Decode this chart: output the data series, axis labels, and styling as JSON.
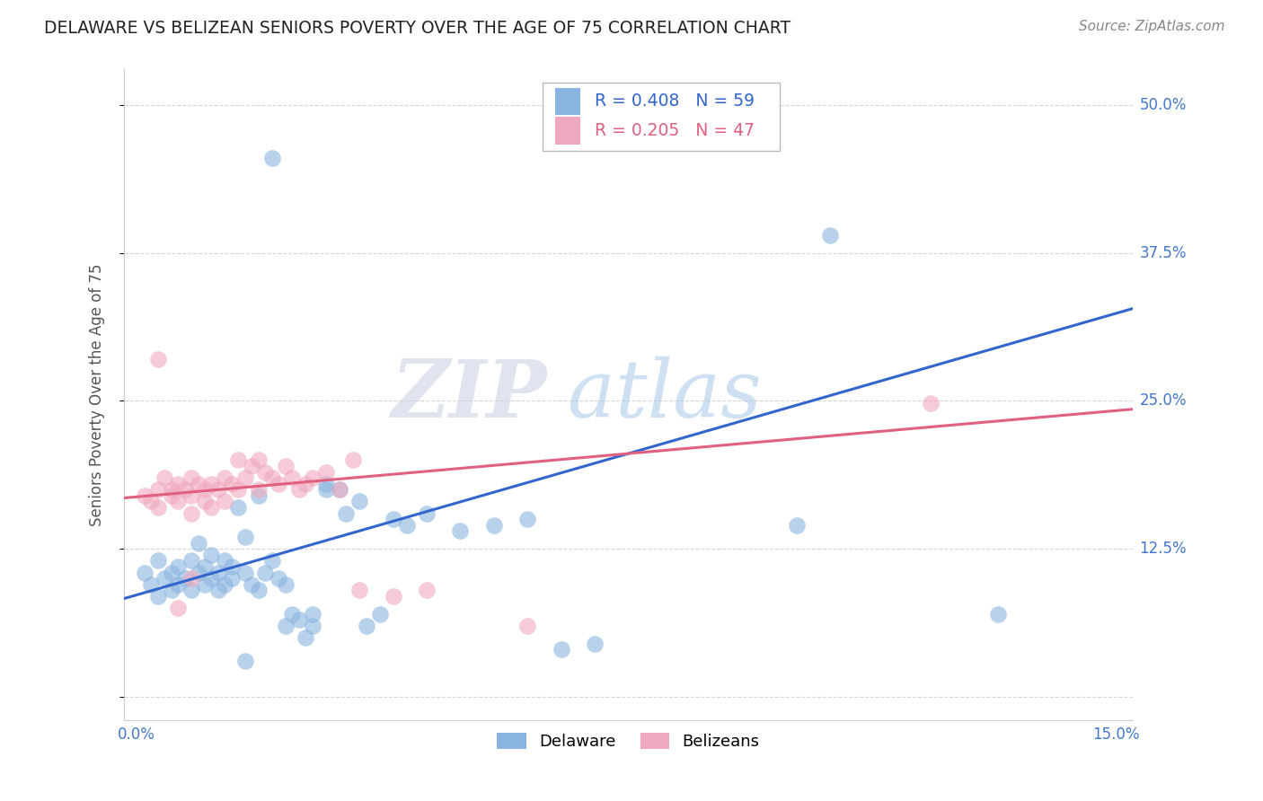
{
  "title": "DELAWARE VS BELIZEAN SENIORS POVERTY OVER THE AGE OF 75 CORRELATION CHART",
  "source": "Source: ZipAtlas.com",
  "ylabel": "Seniors Poverty Over the Age of 75",
  "x_min": 0.0,
  "x_max": 0.15,
  "y_min": -0.02,
  "y_max": 0.53,
  "yticks": [
    0.0,
    0.125,
    0.25,
    0.375,
    0.5
  ],
  "ytick_labels": [
    "",
    "12.5%",
    "25.0%",
    "37.5%",
    "50.0%"
  ],
  "background_color": "#ffffff",
  "grid_color": "#cccccc",
  "blue_color": "#8ab4e0",
  "pink_color": "#f0a8be",
  "blue_line_color": "#3366cc",
  "pink_line_color": "#e06080",
  "tick_label_color": "#4477cc",
  "blue_scatter": [
    [
      0.003,
      0.105
    ],
    [
      0.004,
      0.095
    ],
    [
      0.005,
      0.115
    ],
    [
      0.005,
      0.085
    ],
    [
      0.006,
      0.1
    ],
    [
      0.007,
      0.09
    ],
    [
      0.007,
      0.105
    ],
    [
      0.008,
      0.095
    ],
    [
      0.008,
      0.11
    ],
    [
      0.009,
      0.1
    ],
    [
      0.01,
      0.09
    ],
    [
      0.01,
      0.115
    ],
    [
      0.011,
      0.105
    ],
    [
      0.011,
      0.13
    ],
    [
      0.012,
      0.095
    ],
    [
      0.012,
      0.11
    ],
    [
      0.013,
      0.1
    ],
    [
      0.013,
      0.12
    ],
    [
      0.014,
      0.09
    ],
    [
      0.014,
      0.105
    ],
    [
      0.015,
      0.115
    ],
    [
      0.015,
      0.095
    ],
    [
      0.016,
      0.1
    ],
    [
      0.016,
      0.11
    ],
    [
      0.017,
      0.16
    ],
    [
      0.018,
      0.135
    ],
    [
      0.018,
      0.105
    ],
    [
      0.019,
      0.095
    ],
    [
      0.02,
      0.17
    ],
    [
      0.02,
      0.09
    ],
    [
      0.021,
      0.105
    ],
    [
      0.022,
      0.115
    ],
    [
      0.023,
      0.1
    ],
    [
      0.024,
      0.095
    ],
    [
      0.024,
      0.06
    ],
    [
      0.025,
      0.07
    ],
    [
      0.026,
      0.065
    ],
    [
      0.027,
      0.05
    ],
    [
      0.028,
      0.07
    ],
    [
      0.028,
      0.06
    ],
    [
      0.03,
      0.175
    ],
    [
      0.03,
      0.18
    ],
    [
      0.032,
      0.175
    ],
    [
      0.033,
      0.155
    ],
    [
      0.035,
      0.165
    ],
    [
      0.036,
      0.06
    ],
    [
      0.038,
      0.07
    ],
    [
      0.04,
      0.15
    ],
    [
      0.042,
      0.145
    ],
    [
      0.045,
      0.155
    ],
    [
      0.05,
      0.14
    ],
    [
      0.055,
      0.145
    ],
    [
      0.06,
      0.15
    ],
    [
      0.065,
      0.04
    ],
    [
      0.07,
      0.045
    ],
    [
      0.1,
      0.145
    ],
    [
      0.105,
      0.39
    ],
    [
      0.13,
      0.07
    ],
    [
      0.022,
      0.455
    ],
    [
      0.018,
      0.03
    ]
  ],
  "pink_scatter": [
    [
      0.003,
      0.17
    ],
    [
      0.004,
      0.165
    ],
    [
      0.005,
      0.175
    ],
    [
      0.005,
      0.16
    ],
    [
      0.006,
      0.185
    ],
    [
      0.007,
      0.175
    ],
    [
      0.007,
      0.17
    ],
    [
      0.008,
      0.18
    ],
    [
      0.008,
      0.165
    ],
    [
      0.009,
      0.175
    ],
    [
      0.01,
      0.185
    ],
    [
      0.01,
      0.17
    ],
    [
      0.011,
      0.18
    ],
    [
      0.012,
      0.175
    ],
    [
      0.012,
      0.165
    ],
    [
      0.013,
      0.18
    ],
    [
      0.014,
      0.175
    ],
    [
      0.015,
      0.185
    ],
    [
      0.015,
      0.165
    ],
    [
      0.016,
      0.18
    ],
    [
      0.017,
      0.2
    ],
    [
      0.017,
      0.175
    ],
    [
      0.018,
      0.185
    ],
    [
      0.019,
      0.195
    ],
    [
      0.02,
      0.175
    ],
    [
      0.02,
      0.2
    ],
    [
      0.021,
      0.19
    ],
    [
      0.022,
      0.185
    ],
    [
      0.023,
      0.18
    ],
    [
      0.024,
      0.195
    ],
    [
      0.025,
      0.185
    ],
    [
      0.026,
      0.175
    ],
    [
      0.027,
      0.18
    ],
    [
      0.028,
      0.185
    ],
    [
      0.03,
      0.19
    ],
    [
      0.032,
      0.175
    ],
    [
      0.034,
      0.2
    ],
    [
      0.035,
      0.09
    ],
    [
      0.04,
      0.085
    ],
    [
      0.045,
      0.09
    ],
    [
      0.005,
      0.285
    ],
    [
      0.12,
      0.248
    ],
    [
      0.013,
      0.16
    ],
    [
      0.01,
      0.155
    ],
    [
      0.01,
      0.1
    ],
    [
      0.008,
      0.075
    ],
    [
      0.06,
      0.06
    ]
  ],
  "blue_line": {
    "x0": 0.0,
    "y0": 0.083,
    "x1": 0.15,
    "y1": 0.328
  },
  "pink_line": {
    "x0": 0.0,
    "y0": 0.168,
    "x1": 0.15,
    "y1": 0.243
  }
}
